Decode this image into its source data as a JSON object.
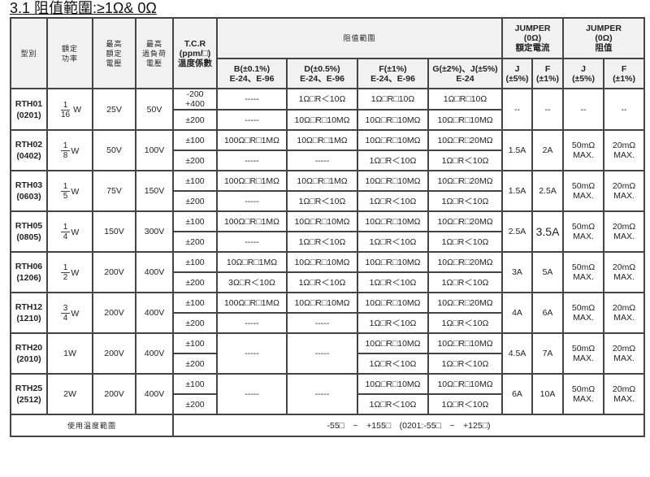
{
  "title": "3.1 阻值範圍:≥1Ω& 0Ω",
  "headers": {
    "model": "型別",
    "power": "額定\n功率",
    "max_voltage": "最高\n額定\n電壓",
    "overload_voltage": "最高\n過負荷\n電壓",
    "tcr": "T.C.R\n(ppm/□)\n溫度係數",
    "range": "阻值範圍",
    "b": "B(±0.1%)\nE-24、E-96",
    "d": "D(±0.5%)\nE-24、E-96",
    "f": "F(±1%)\nE-24、E-96",
    "g": "G(±2%)、J(±5%)\nE-24",
    "jumper_current": "JUMPER\n(0Ω)\n額定電流",
    "jumper_resistance": "JUMPER\n(0Ω)\n阻值",
    "j": "J\n(±5%)",
    "fj": "F\n(±1%)"
  },
  "rows": [
    {
      "model": "RTH01\n(0201)",
      "power": {
        "num": "1",
        "den": "16",
        "unit": "W"
      },
      "voltage": "25V",
      "overload": "50V",
      "tcr": [
        "-200\n+400",
        "±200"
      ],
      "b": [
        "-----",
        "-----"
      ],
      "d": [
        "1Ω□R＜10Ω",
        "10Ω□R□10MΩ"
      ],
      "f": [
        "1Ω□R□10Ω",
        "10Ω□R□10MΩ"
      ],
      "g": [
        "1Ω□R□10Ω",
        "10Ω□R□10MΩ"
      ],
      "jc": [
        "--",
        "--"
      ],
      "jr": [
        "--",
        "--"
      ]
    },
    {
      "model": "RTH02\n(0402)",
      "power": {
        "num": "1",
        "den": "8",
        "unit": "W"
      },
      "voltage": "50V",
      "overload": "100V",
      "tcr": [
        "±100",
        "±200"
      ],
      "b": [
        "100Ω□R□1MΩ",
        "-----"
      ],
      "d": [
        "10Ω□R□1MΩ",
        "-----"
      ],
      "f": [
        "10Ω□R□10MΩ",
        "1Ω□R＜10Ω"
      ],
      "g": [
        "10Ω□R□20MΩ",
        "1Ω□R＜10Ω"
      ],
      "jc": [
        "1.5A",
        "2A"
      ],
      "jr": [
        "50mΩ\nMAX.",
        "20mΩ\nMAX."
      ]
    },
    {
      "model": "RTH03\n(0603)",
      "power": {
        "num": "1",
        "den": "5",
        "unit": "W"
      },
      "voltage": "75V",
      "overload": "150V",
      "tcr": [
        "±100",
        "±200"
      ],
      "b": [
        "100Ω□R□1MΩ",
        "-----"
      ],
      "d": [
        "10Ω□R□1MΩ",
        "1Ω□R＜10Ω"
      ],
      "f": [
        "10Ω□R□10MΩ",
        "1Ω□R＜10Ω"
      ],
      "g": [
        "10Ω□R□20MΩ",
        "1Ω□R＜10Ω"
      ],
      "jc": [
        "1.5A",
        "2.5A"
      ],
      "jr": [
        "50mΩ\nMAX.",
        "20mΩ\nMAX."
      ]
    },
    {
      "model": "RTH05\n(0805)",
      "power": {
        "num": "1",
        "den": "4",
        "unit": "W"
      },
      "voltage": "150V",
      "overload": "300V",
      "tcr": [
        "±100",
        "±200"
      ],
      "b": [
        "100Ω□R□1MΩ",
        "-----"
      ],
      "d": [
        "10Ω□R□10MΩ",
        "1Ω□R＜10Ω"
      ],
      "f": [
        "10Ω□R□10MΩ",
        "1Ω□R＜10Ω"
      ],
      "g": [
        "10Ω□R□20MΩ",
        "1Ω□R＜10Ω"
      ],
      "jc": [
        "2.5A",
        "3.5A"
      ],
      "jr": [
        "50mΩ\nMAX.",
        "20mΩ\nMAX."
      ]
    },
    {
      "model": "RTH06\n(1206)",
      "power": {
        "num": "1",
        "den": "2",
        "unit": "W"
      },
      "voltage": "200V",
      "overload": "400V",
      "tcr": [
        "±100",
        "±200"
      ],
      "b": [
        "10Ω□R□1MΩ",
        "3Ω□R＜10Ω"
      ],
      "d": [
        "10Ω□R□10MΩ",
        "1Ω□R＜10Ω"
      ],
      "f": [
        "10Ω□R□10MΩ",
        "1Ω□R＜10Ω"
      ],
      "g": [
        "10Ω□R□20MΩ",
        "1Ω□R＜10Ω"
      ],
      "jc": [
        "3A",
        "5A"
      ],
      "jr": [
        "50mΩ\nMAX.",
        "20mΩ\nMAX."
      ]
    },
    {
      "model": "RTH12\n(1210)",
      "power": {
        "num": "3",
        "den": "4",
        "unit": "W"
      },
      "voltage": "200V",
      "overload": "400V",
      "tcr": [
        "±100",
        "±200"
      ],
      "b": [
        "100Ω□R□1MΩ",
        "-----"
      ],
      "d": [
        "10Ω□R□10MΩ",
        "-----"
      ],
      "f": [
        "10Ω□R□10MΩ",
        "1Ω□R＜10Ω"
      ],
      "g": [
        "10Ω□R□20MΩ",
        "1Ω□R＜10Ω"
      ],
      "jc": [
        "4A",
        "6A"
      ],
      "jr": [
        "50mΩ\nMAX.",
        "20mΩ\nMAX."
      ]
    },
    {
      "model": "RTH20\n(2010)",
      "power": {
        "text": "1W"
      },
      "voltage": "200V",
      "overload": "400V",
      "tcr": [
        "±100",
        "±200"
      ],
      "b": [
        "-----"
      ],
      "d": [
        "-----"
      ],
      "f": [
        "10Ω□R□10MΩ",
        "1Ω□R＜10Ω"
      ],
      "g": [
        "10Ω□R□10MΩ",
        "1Ω□R＜10Ω"
      ],
      "jc": [
        "4.5A",
        "7A"
      ],
      "jr": [
        "50mΩ\nMAX.",
        "20mΩ\nMAX."
      ]
    },
    {
      "model": "RTH25\n(2512)",
      "power": {
        "text": "2W"
      },
      "voltage": "200V",
      "overload": "400V",
      "tcr": [
        "±100",
        "±200"
      ],
      "b": [
        "-----"
      ],
      "d": [
        "-----"
      ],
      "f": [
        "10Ω□R□10MΩ",
        "1Ω□R＜10Ω"
      ],
      "g": [
        "10Ω□R□10MΩ",
        "1Ω□R＜10Ω"
      ],
      "jc": [
        "6A",
        "10A"
      ],
      "jr": [
        "50mΩ\nMAX.",
        "20mΩ\nMAX."
      ]
    }
  ],
  "footer": {
    "label": "使用溫度範圍",
    "value": "-55□　~　+155□　(0201:-55□　~　+125□)"
  }
}
